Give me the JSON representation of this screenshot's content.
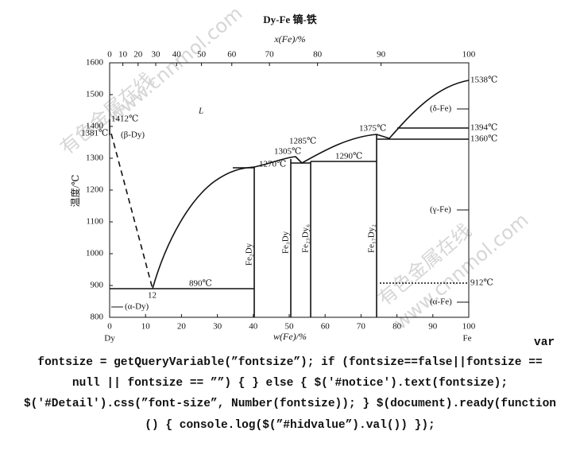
{
  "header": {
    "title": "Dy-Fe  镝-铁",
    "top_axis_label": "x(Fe)/%",
    "bottom_axis_label": "w(Fe)/%",
    "y_axis_label": "温度/℃",
    "left_element": "Dy",
    "right_element": "Fe"
  },
  "axes": {
    "top_ticks": [
      "0",
      "10",
      "20",
      "30",
      "40",
      "50",
      "60",
      "70",
      "80",
      "90",
      "100"
    ],
    "bottom_ticks": [
      "0",
      "10",
      "20",
      "30",
      "40",
      "50",
      "60",
      "70",
      "80",
      "90",
      "100"
    ],
    "y_ticks": [
      "800",
      "900",
      "1000",
      "1100",
      "1200",
      "1300",
      "1400",
      "1500",
      "1600"
    ]
  },
  "annotations": {
    "t1412": "1412℃",
    "t1381": "1381℃",
    "beta_dy": "(β-Dy)",
    "liquid": "L",
    "t1305": "1305℃",
    "t1285": "1285℃",
    "t1270": "1270℃",
    "t1375": "1375℃",
    "t1290": "1290℃",
    "t1538": "1538℃",
    "delta_fe": "(δ-Fe)",
    "t1394": "1394℃",
    "t1360": "1360℃",
    "gamma_fe": "(γ-Fe)",
    "t912": "912℃",
    "alpha_fe": "(α-Fe)",
    "t890": "890℃",
    "eutectic": "12",
    "alpha_dy": "(α-Dy)"
  },
  "compounds": [
    "Fe₂Dy",
    "Fe₃Dy",
    "Fe₂₃Dy₆",
    "Fe₁₇Dy₂"
  ],
  "watermark": [
    "有色金属在线",
    "www.cnnmol.com"
  ],
  "code_lines": [
    "var",
    "fontsize = getQueryVariable(”fontsize”); if (fontsize==false||fontsize ==",
    "null || fontsize == ””) { } else { $('#notice').text(fontsize);",
    "$('#Detail').css(”font-size”, Number(fontsize)); } $(document).ready(function",
    "() { console.log($(”#hidvalue”).val()) });"
  ]
}
